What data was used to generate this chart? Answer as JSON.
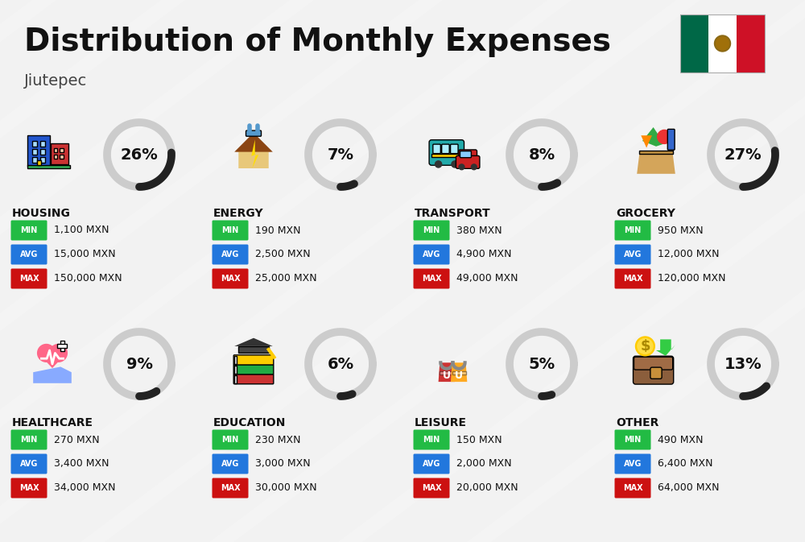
{
  "title": "Distribution of Monthly Expenses",
  "subtitle": "Jiutepec",
  "bg_color": "#f2f2f2",
  "categories": [
    {
      "name": "HOUSING",
      "pct": 26,
      "min": "1,100 MXN",
      "avg": "15,000 MXN",
      "max": "150,000 MXN",
      "row": 0,
      "col": 0
    },
    {
      "name": "ENERGY",
      "pct": 7,
      "min": "190 MXN",
      "avg": "2,500 MXN",
      "max": "25,000 MXN",
      "row": 0,
      "col": 1
    },
    {
      "name": "TRANSPORT",
      "pct": 8,
      "min": "380 MXN",
      "avg": "4,900 MXN",
      "max": "49,000 MXN",
      "row": 0,
      "col": 2
    },
    {
      "name": "GROCERY",
      "pct": 27,
      "min": "950 MXN",
      "avg": "12,000 MXN",
      "max": "120,000 MXN",
      "row": 0,
      "col": 3
    },
    {
      "name": "HEALTHCARE",
      "pct": 9,
      "min": "270 MXN",
      "avg": "3,400 MXN",
      "max": "34,000 MXN",
      "row": 1,
      "col": 0
    },
    {
      "name": "EDUCATION",
      "pct": 6,
      "min": "230 MXN",
      "avg": "3,000 MXN",
      "max": "30,000 MXN",
      "row": 1,
      "col": 1
    },
    {
      "name": "LEISURE",
      "pct": 5,
      "min": "150 MXN",
      "avg": "2,000 MXN",
      "max": "20,000 MXN",
      "row": 1,
      "col": 2
    },
    {
      "name": "OTHER",
      "pct": 13,
      "min": "490 MXN",
      "avg": "6,400 MXN",
      "max": "64,000 MXN",
      "row": 1,
      "col": 3
    }
  ],
  "color_min": "#22bb44",
  "color_avg": "#2277dd",
  "color_max": "#cc1111",
  "ring_dark": "#222222",
  "ring_light": "#cccccc",
  "flag_colors": [
    "#006847",
    "#ffffff",
    "#ce1126"
  ],
  "stripe_color": "#e8e8e8",
  "title_fontsize": 28,
  "subtitle_fontsize": 14,
  "cat_fontsize": 10,
  "badge_fontsize": 7,
  "val_fontsize": 9,
  "pct_fontsize": 14
}
